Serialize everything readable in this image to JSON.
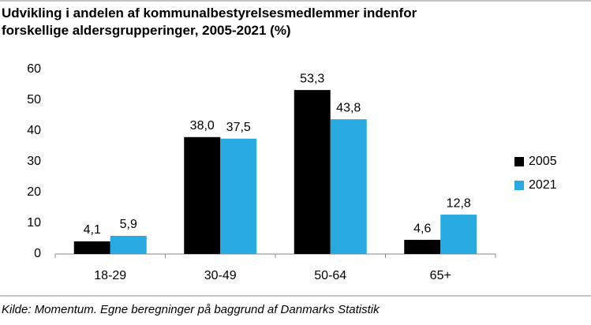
{
  "chart_data": {
    "type": "bar",
    "title": "Udvikling i andelen af kommunalbestyrelsesmedlemmer indenfor forskellige aldersgrupperinger, 2005-2021 (%)",
    "categories": [
      "18-29",
      "30-49",
      "50-64",
      "65+"
    ],
    "series": [
      {
        "name": "2005",
        "color": "#000000",
        "values": [
          4.1,
          38.0,
          53.3,
          4.6
        ],
        "value_labels": [
          "4,1",
          "38,0",
          "53,3",
          "4,6"
        ]
      },
      {
        "name": "2021",
        "color": "#29abe2",
        "values": [
          5.9,
          37.5,
          43.8,
          12.8
        ],
        "value_labels": [
          "5,9",
          "37,5",
          "43,8",
          "12,8"
        ]
      }
    ],
    "ylim": [
      0,
      60
    ],
    "yticks": [
      0,
      10,
      20,
      30,
      40,
      50,
      60
    ],
    "grid": false,
    "legend": "right",
    "source": "Kilde: Momentum. Egne beregninger på baggrund af Danmarks Statistik"
  }
}
